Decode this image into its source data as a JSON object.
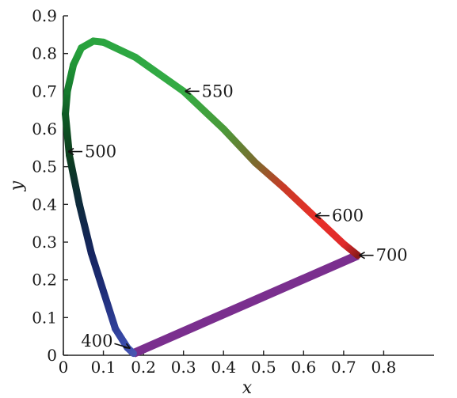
{
  "chart_data": {
    "type": "line",
    "xlabel": "x",
    "ylabel": "y",
    "xlim": [
      0,
      0.9
    ],
    "ylim": [
      0,
      0.9
    ],
    "x_ticks": [
      "0",
      "0.1",
      "0.2",
      "0.3",
      "0.4",
      "0.5",
      "0.6",
      "0.7",
      "0.8"
    ],
    "y_ticks": [
      "0",
      "0.1",
      "0.2",
      "0.3",
      "0.4",
      "0.5",
      "0.6",
      "0.7",
      "0.8",
      "0.9"
    ],
    "grid": false,
    "series": [
      {
        "points": [
          {
            "x": 0.175,
            "y": 0.005,
            "color": "#4a55b0"
          },
          {
            "x": 0.16,
            "y": 0.02,
            "color": "#3d4fb0"
          },
          {
            "x": 0.13,
            "y": 0.07,
            "color": "#2f3f98"
          },
          {
            "x": 0.1,
            "y": 0.17,
            "color": "#1f2e78"
          },
          {
            "x": 0.07,
            "y": 0.27,
            "color": "#162560"
          },
          {
            "x": 0.04,
            "y": 0.4,
            "color": "#0e2a3c"
          },
          {
            "x": 0.015,
            "y": 0.53,
            "color": "#0d3e1e"
          },
          {
            "x": 0.005,
            "y": 0.64,
            "color": "#0f5a25"
          },
          {
            "x": 0.01,
            "y": 0.7,
            "color": "#167a2e"
          },
          {
            "x": 0.025,
            "y": 0.77,
            "color": "#209436"
          },
          {
            "x": 0.045,
            "y": 0.815,
            "color": "#27a13c"
          },
          {
            "x": 0.075,
            "y": 0.833,
            "color": "#2aa33e"
          },
          {
            "x": 0.1,
            "y": 0.83,
            "color": "#2ca540"
          },
          {
            "x": 0.18,
            "y": 0.79,
            "color": "#2ea843"
          },
          {
            "x": 0.3,
            "y": 0.7,
            "color": "#35ab44"
          },
          {
            "x": 0.4,
            "y": 0.6,
            "color": "#4a9a3a"
          },
          {
            "x": 0.48,
            "y": 0.51,
            "color": "#7c6a2e"
          },
          {
            "x": 0.55,
            "y": 0.445,
            "color": "#c83a26"
          },
          {
            "x": 0.63,
            "y": 0.365,
            "color": "#e83028"
          },
          {
            "x": 0.7,
            "y": 0.295,
            "color": "#e02a2a"
          },
          {
            "x": 0.735,
            "y": 0.265,
            "color": "#8a1a1a"
          }
        ],
        "closing_line": {
          "from": {
            "x": 0.735,
            "y": 0.265
          },
          "to": {
            "x": 0.175,
            "y": 0.005
          },
          "color": "#7a2f8e"
        }
      }
    ],
    "annotations": [
      {
        "text": "400",
        "x": 0.175,
        "y": 0.01,
        "label_side": "left"
      },
      {
        "text": "500",
        "x": 0.008,
        "y": 0.54,
        "label_side": "right"
      },
      {
        "text": "550",
        "x": 0.3,
        "y": 0.7,
        "label_side": "right"
      },
      {
        "text": "600",
        "x": 0.625,
        "y": 0.37,
        "label_side": "right"
      },
      {
        "text": "700",
        "x": 0.735,
        "y": 0.265,
        "label_side": "right"
      }
    ]
  }
}
